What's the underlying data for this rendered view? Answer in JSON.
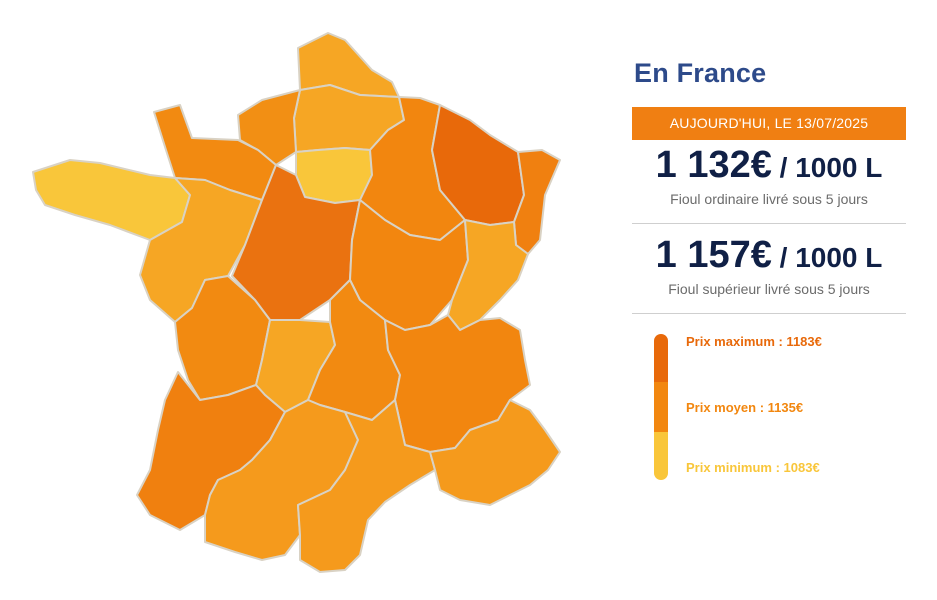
{
  "colors": {
    "max": "#e8690a",
    "mid": "#f2870f",
    "min": "#f9c63a",
    "title": "#2d4a8a",
    "price": "#102046",
    "banner": "#f07f12"
  },
  "regions": [
    {
      "name": "hauts-de-france-nord",
      "fill": "#f6a624"
    },
    {
      "name": "hauts-de-france-sud",
      "fill": "#f6a624"
    },
    {
      "name": "haute-normandie",
      "fill": "#f28f14"
    },
    {
      "name": "basse-normandie",
      "fill": "#f28a11"
    },
    {
      "name": "ile-de-france",
      "fill": "#f9c63a"
    },
    {
      "name": "champagne-ardenne",
      "fill": "#f2860f"
    },
    {
      "name": "lorraine",
      "fill": "#e8690a"
    },
    {
      "name": "alsace",
      "fill": "#f08010"
    },
    {
      "name": "bretagne",
      "fill": "#f9c63a"
    },
    {
      "name": "pays-de-la-loire",
      "fill": "#f6a624"
    },
    {
      "name": "centre",
      "fill": "#ea7210"
    },
    {
      "name": "bourgogne",
      "fill": "#f2860f"
    },
    {
      "name": "franche-comte",
      "fill": "#f6a624"
    },
    {
      "name": "poitou-charentes",
      "fill": "#f28a11"
    },
    {
      "name": "limousin",
      "fill": "#f6a624"
    },
    {
      "name": "auvergne",
      "fill": "#f28a11"
    },
    {
      "name": "rhone-alpes",
      "fill": "#f2860f"
    },
    {
      "name": "aquitaine",
      "fill": "#f0800f"
    },
    {
      "name": "midi-pyrenees",
      "fill": "#f59a1c"
    },
    {
      "name": "languedoc-roussillon",
      "fill": "#f59a1c"
    },
    {
      "name": "provence-alpes-cote-dazur",
      "fill": "#f59a1c"
    }
  ],
  "panel": {
    "title": "En France",
    "date_banner": "AUJOURD'HUI, LE 13/07/2025",
    "ordinary": {
      "price": "1 132€",
      "unit": " / 1000 L",
      "label": "Fioul ordinaire livré sous 5 jours"
    },
    "superior": {
      "price": "1 157€",
      "unit": " / 1000 L",
      "label": "Fioul supérieur livré sous 5 jours"
    },
    "legend": {
      "max_label": "Prix maximum : 1183€",
      "avg_label": "Prix moyen : 1135€",
      "min_label": "Prix minimum : 1083€"
    }
  }
}
